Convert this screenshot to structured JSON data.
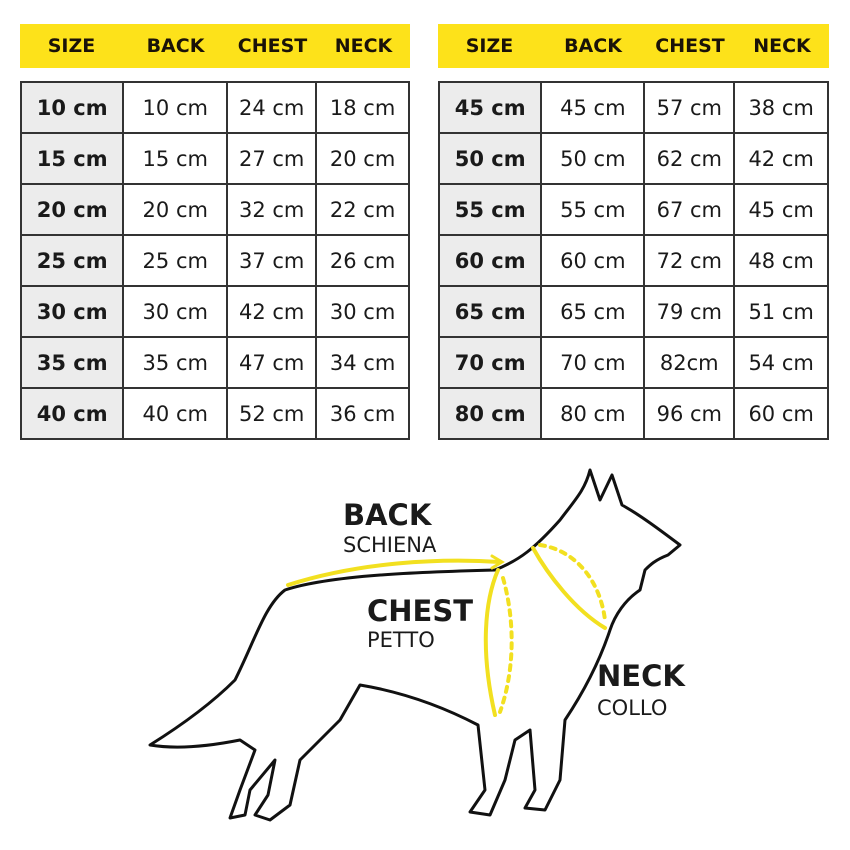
{
  "headers": [
    "SIZE",
    "BACK",
    "CHEST",
    "NECK"
  ],
  "tables": [
    {
      "rows": [
        [
          "10 cm",
          "10 cm",
          "24 cm",
          "18 cm"
        ],
        [
          "15 cm",
          "15 cm",
          "27 cm",
          "20 cm"
        ],
        [
          "20 cm",
          "20 cm",
          "32 cm",
          "22 cm"
        ],
        [
          "25 cm",
          "25 cm",
          "37 cm",
          "26 cm"
        ],
        [
          "30 cm",
          "30 cm",
          "42 cm",
          "30 cm"
        ],
        [
          "35 cm",
          "35 cm",
          "47 cm",
          "34 cm"
        ],
        [
          "40 cm",
          "40 cm",
          "52 cm",
          "36 cm"
        ]
      ]
    },
    {
      "rows": [
        [
          "45 cm",
          "45 cm",
          "57 cm",
          "38 cm"
        ],
        [
          "50 cm",
          "50 cm",
          "62 cm",
          "42 cm"
        ],
        [
          "55 cm",
          "55 cm",
          "67 cm",
          "45 cm"
        ],
        [
          "60 cm",
          "60 cm",
          "72 cm",
          "48 cm"
        ],
        [
          "65 cm",
          "65 cm",
          "79 cm",
          "51 cm"
        ],
        [
          "70 cm",
          "70 cm",
          "82cm",
          "54 cm"
        ],
        [
          "80 cm",
          "80 cm",
          "96 cm",
          "60 cm"
        ]
      ]
    }
  ],
  "diagram": {
    "back": {
      "title": "BACK",
      "subtitle": "SCHIENA"
    },
    "chest": {
      "title": "CHEST",
      "subtitle": "PETTO"
    },
    "neck": {
      "title": "NECK",
      "subtitle": "COLLO"
    }
  },
  "colors": {
    "accent": "#fde21a",
    "size_cell": "#ececec",
    "border": "#333333",
    "measure_line": "#f2e020"
  }
}
